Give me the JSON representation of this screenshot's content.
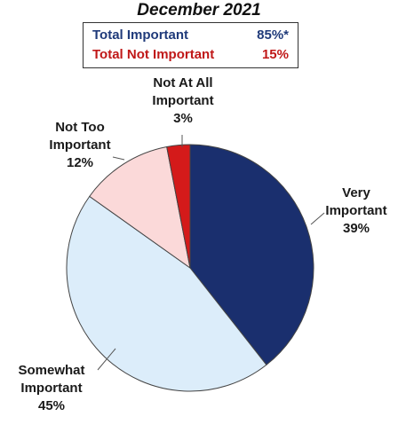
{
  "title": "December 2021",
  "summary": {
    "rows": [
      {
        "label": "Total Important",
        "value": "85%*",
        "color": "#1f3a7a"
      },
      {
        "label": "Total Not Important",
        "value": "15%",
        "color": "#c01818"
      }
    ]
  },
  "chart_data": {
    "type": "pie",
    "title": "December 2021",
    "start_angle_deg": 0,
    "direction": "clockwise",
    "slices": [
      {
        "name": "Very Important",
        "value": 39,
        "label_lines": [
          "Very",
          "Important",
          "39%"
        ],
        "color": "#1a2f6e"
      },
      {
        "name": "Somewhat Important",
        "value": 45,
        "label_lines": [
          "Somewhat",
          "Important",
          "45%"
        ],
        "color": "#dcedfa"
      },
      {
        "name": "Not Too Important",
        "value": 12,
        "label_lines": [
          "Not Too",
          "Important",
          "12%"
        ],
        "color": "#fbd9d9"
      },
      {
        "name": "Not At All Important",
        "value": 3,
        "label_lines": [
          "Not At All",
          "Important",
          "3%"
        ],
        "color": "#d41a1a"
      }
    ]
  }
}
